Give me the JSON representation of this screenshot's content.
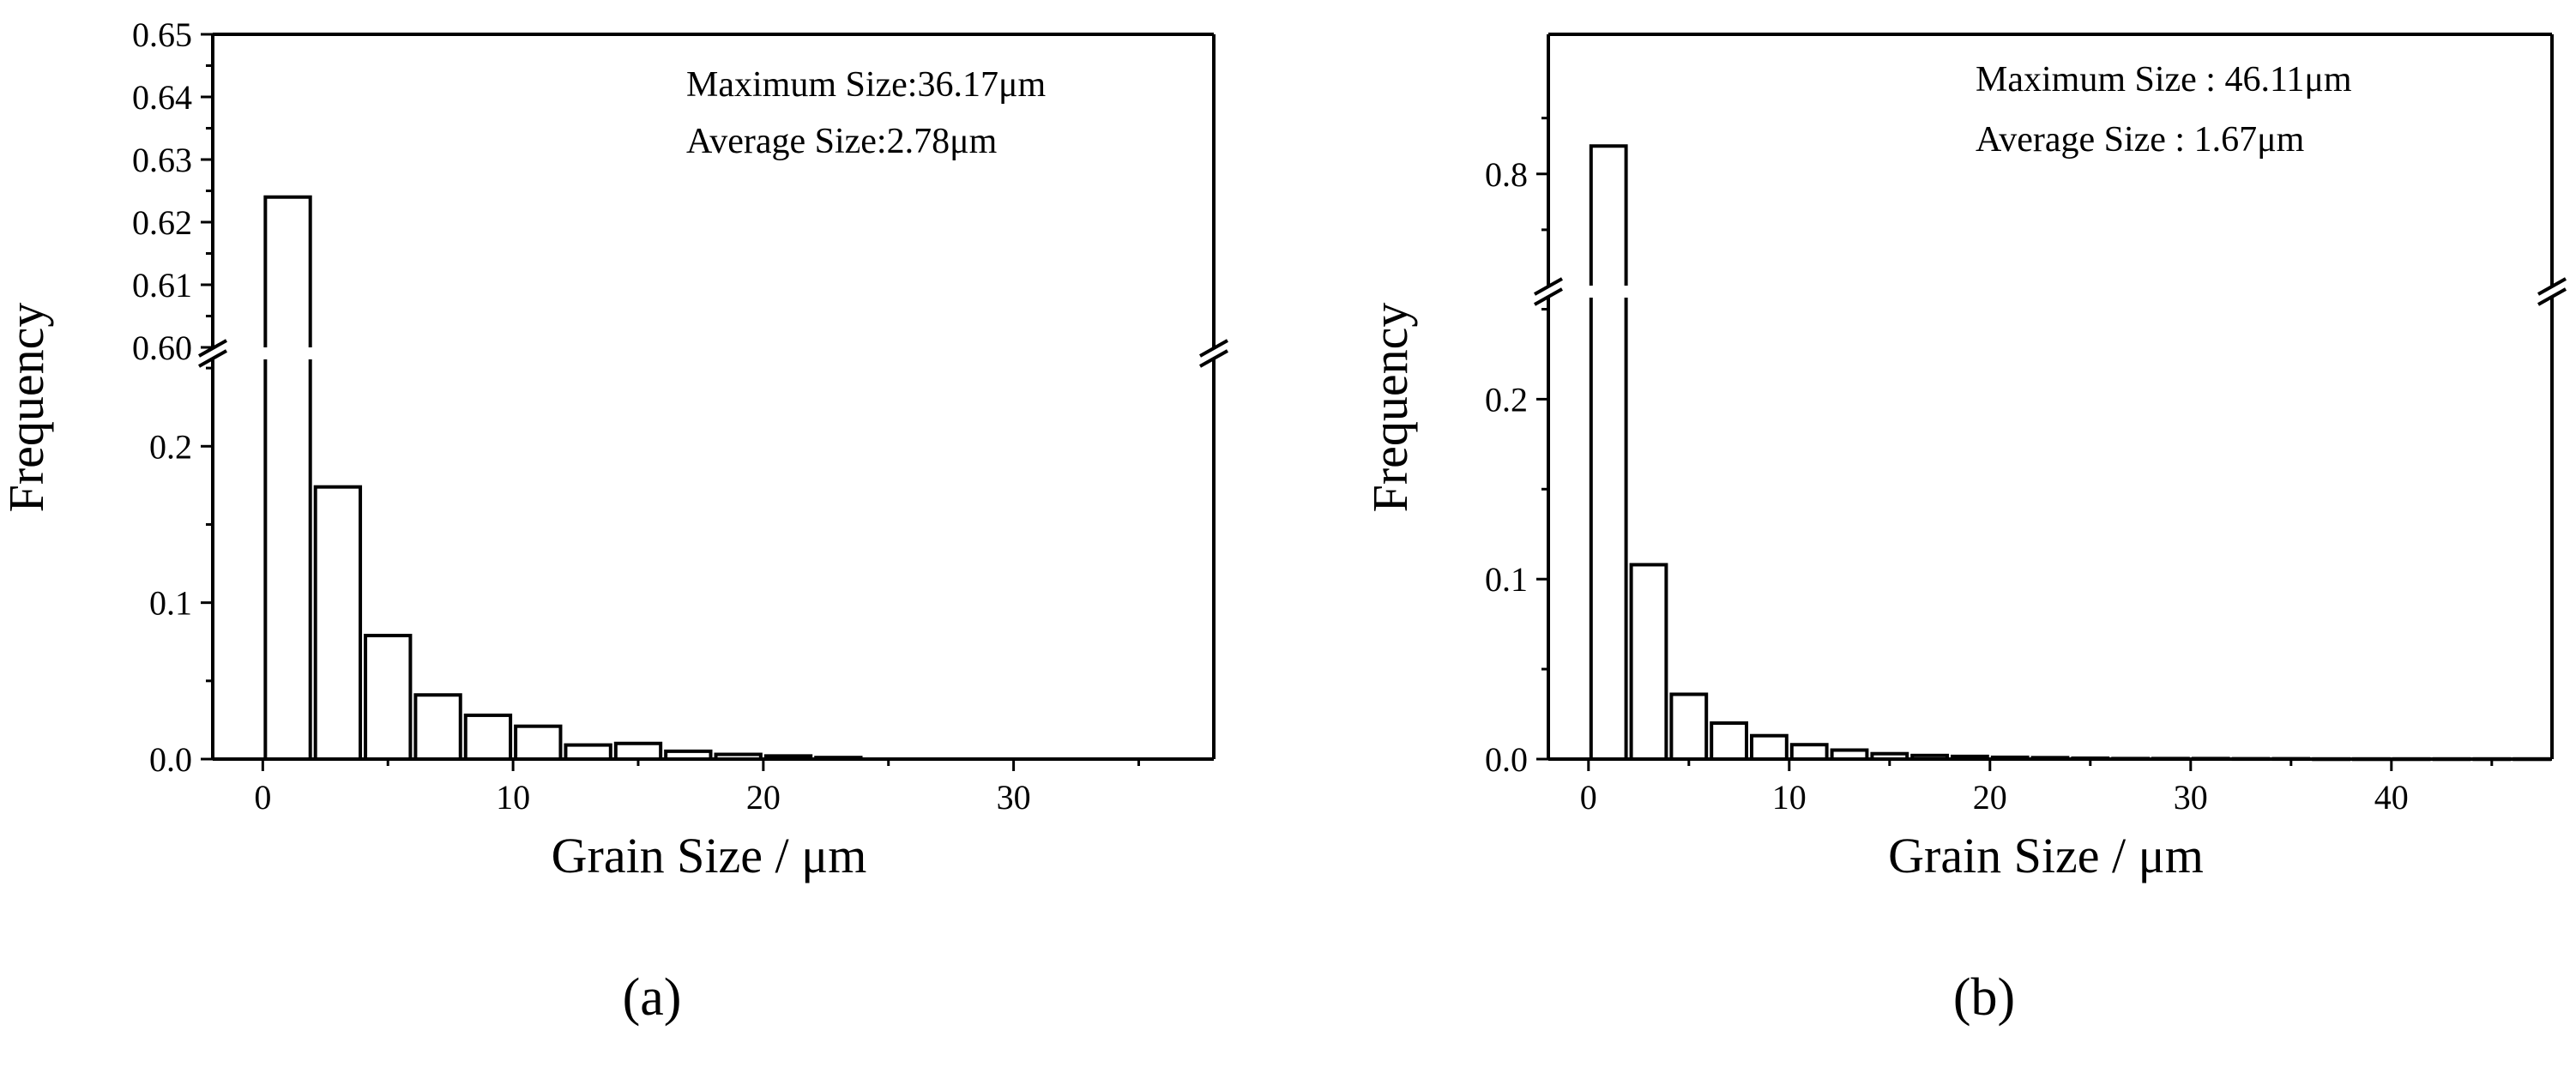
{
  "chart_data": [
    {
      "type": "bar",
      "panel_label": "(a)",
      "xlabel": "Grain Size / μm",
      "ylabel": "Frequency",
      "annotations": [
        "Maximum Size:36.17μm",
        "Average Size:2.78μm"
      ],
      "x_ticks": [
        "0",
        "10",
        "20",
        "30"
      ],
      "y_ticks_lower": [
        "0.0",
        "0.1",
        "0.2"
      ],
      "y_ticks_upper": [
        "0.60",
        "0.61",
        "0.62",
        "0.63",
        "0.64",
        "0.65"
      ],
      "xlim": [
        -2,
        38
      ],
      "ylim_lower": [
        0,
        0.255
      ],
      "ylim_upper": [
        0.6,
        0.65
      ],
      "broken_y_axis": true,
      "bin_width": 2,
      "bins_x": [
        1,
        3,
        5,
        7,
        9,
        11,
        13,
        15,
        17,
        19,
        21,
        23,
        25,
        27,
        29,
        31,
        33,
        35
      ],
      "values": [
        0.624,
        0.174,
        0.079,
        0.041,
        0.028,
        0.021,
        0.009,
        0.01,
        0.005,
        0.003,
        0.002,
        0.001,
        0.0,
        0.0,
        0.0,
        0.0,
        0.0,
        0.0
      ],
      "grid": false
    },
    {
      "type": "bar",
      "panel_label": "(b)",
      "xlabel": "Grain Size / μm",
      "ylabel": "Frequency",
      "annotations": [
        "Maximum Size : 46.11μm",
        "Average Size : 1.67μm"
      ],
      "x_ticks": [
        "0",
        "10",
        "20",
        "30",
        "40"
      ],
      "y_ticks_lower": [
        "0.0",
        "0.1",
        "0.2"
      ],
      "y_ticks_upper": [
        "0.8"
      ],
      "xlim": [
        -2,
        48
      ],
      "ylim_lower": [
        0,
        0.255
      ],
      "ylim_upper": [
        0.76,
        0.85
      ],
      "broken_y_axis": true,
      "bin_width": 2,
      "bins_x": [
        1,
        3,
        5,
        7,
        9,
        11,
        13,
        15,
        17,
        19,
        21,
        23,
        25,
        27,
        29,
        31,
        33,
        35,
        37,
        39,
        41,
        43,
        45,
        47
      ],
      "values": [
        0.81,
        0.108,
        0.036,
        0.02,
        0.013,
        0.008,
        0.005,
        0.003,
        0.002,
        0.0015,
        0.001,
        0.0008,
        0.0005,
        0.0003,
        0.0003,
        0.0003,
        0.0002,
        0.0002,
        0.0001,
        0.0001,
        0.0001,
        0.0001,
        0.0001,
        0.0001
      ],
      "grid": false
    }
  ]
}
